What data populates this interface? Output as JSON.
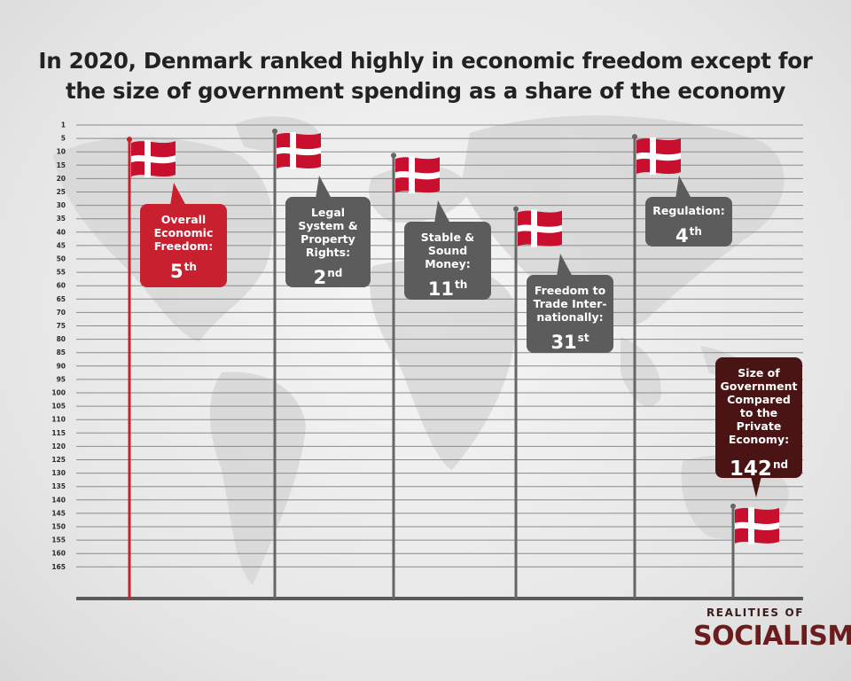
{
  "title_lines": [
    "In 2020, Denmark ranked highly in economic freedom except for",
    "the size of government spending as a share of the economy"
  ],
  "brand": {
    "top": "REALITIES OF",
    "name": "SOCIALISM"
  },
  "colors": {
    "red": "#c8202f",
    "gray_box": "#5c5c5c",
    "dark_box": "#4a1414",
    "pole": "#666666",
    "grid": "#8a8a8a"
  },
  "chart_data": {
    "type": "bar",
    "subject": "Denmark",
    "year": 2020,
    "y_axis": {
      "reversed": true,
      "ticks": [
        1,
        5,
        10,
        15,
        20,
        25,
        30,
        35,
        40,
        45,
        50,
        55,
        60,
        65,
        70,
        75,
        80,
        85,
        90,
        95,
        100,
        105,
        110,
        115,
        120,
        125,
        130,
        135,
        140,
        145,
        150,
        155,
        160,
        165
      ]
    },
    "grid": true,
    "categories": [
      "Overall Economic Freedom:",
      "Legal System & Property Rights:",
      "Stable & Sound Money:",
      "Freedom to Trade Internationally:",
      "Regulation:",
      "Size of Government Compared to the Private Economy:"
    ],
    "values": [
      5,
      2,
      11,
      31,
      4,
      142
    ],
    "rank_labels": [
      {
        "num": "5",
        "suffix": "th"
      },
      {
        "num": "2",
        "suffix": "nd"
      },
      {
        "num": "11",
        "suffix": "th"
      },
      {
        "num": "31",
        "suffix": "st"
      },
      {
        "num": "4",
        "suffix": "th"
      },
      {
        "num": "142",
        "suffix": "nd"
      }
    ],
    "callout_lines": [
      [
        "Overall",
        "Economic",
        "Freedom:"
      ],
      [
        "Legal",
        "System &",
        "Property",
        "Rights:"
      ],
      [
        "Stable &",
        "Sound",
        "Money:"
      ],
      [
        "Freedom to",
        "Trade Inter-",
        "nationally:"
      ],
      [
        "Regulation:"
      ],
      [
        "Size of",
        "Government",
        "Compared",
        "to the",
        "Private",
        "Economy:"
      ]
    ],
    "highlight": [
      0
    ]
  }
}
